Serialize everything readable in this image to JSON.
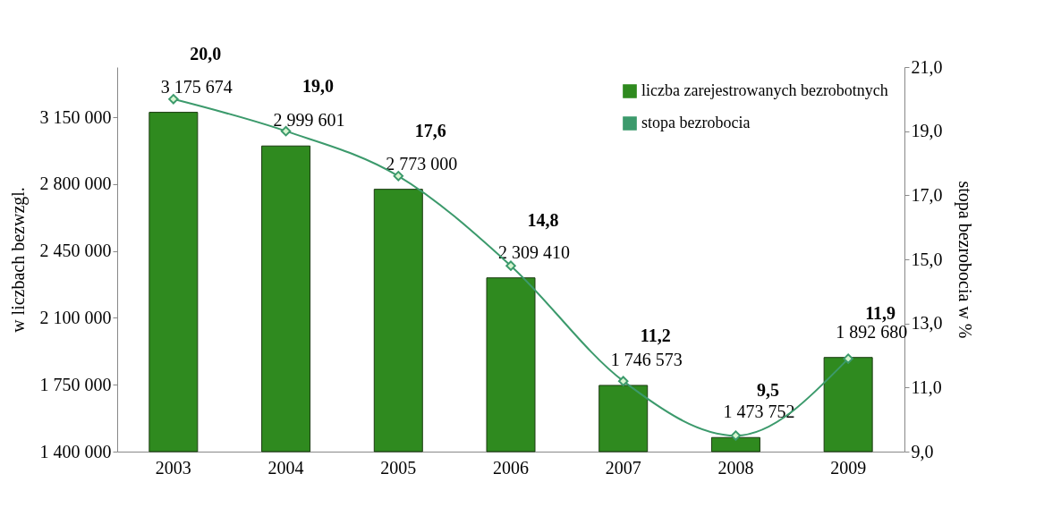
{
  "chart_data": {
    "type": "bar",
    "categories": [
      "2003",
      "2004",
      "2005",
      "2006",
      "2007",
      "2008",
      "2009"
    ],
    "ylabel": "w liczbach bezwzgl.",
    "y2label": "stopa bezrobocia w %",
    "ylim": [
      1400000,
      3412500
    ],
    "yticks": [
      {
        "value": 1400000,
        "label": "1 400 000"
      },
      {
        "value": 1750000,
        "label": "1 750 000"
      },
      {
        "value": 2100000,
        "label": "2 100 000"
      },
      {
        "value": 2450000,
        "label": "2 450 000"
      },
      {
        "value": 2800000,
        "label": "2 800 000"
      },
      {
        "value": 3150000,
        "label": "3 150 000"
      }
    ],
    "y2lim": [
      9,
      21
    ],
    "y2ticks": [
      {
        "value": 9,
        "label": "9,0"
      },
      {
        "value": 11,
        "label": "11,0"
      },
      {
        "value": 13,
        "label": "13,0"
      },
      {
        "value": 15,
        "label": "15,0"
      },
      {
        "value": 17,
        "label": "17,0"
      },
      {
        "value": 19,
        "label": "19,0"
      },
      {
        "value": 21,
        "label": "21,0"
      }
    ],
    "legend": "top right",
    "series": [
      {
        "name": "liczba zarejestrowanych bezrobotnych",
        "color": "#2f8a1f",
        "values": [
          3175674,
          2999601,
          2773000,
          2309410,
          1746573,
          1473752,
          1892680
        ],
        "value_labels": [
          "3 175 674",
          "2 999 601",
          "2 773 000",
          "2 309 410",
          "1 746 573",
          "1 473 752",
          "1 892 680"
        ]
      },
      {
        "name": "stopa bezrobocia",
        "type": "line",
        "axis": "y2",
        "color": "#3c9a6c",
        "marker": "diamond",
        "values": [
          20.0,
          19.0,
          17.6,
          14.8,
          11.2,
          9.5,
          11.9
        ],
        "value_labels": [
          "20,0",
          "19,0",
          "17,6",
          "14,8",
          "11,2",
          "9,5",
          "11,9"
        ]
      }
    ]
  }
}
